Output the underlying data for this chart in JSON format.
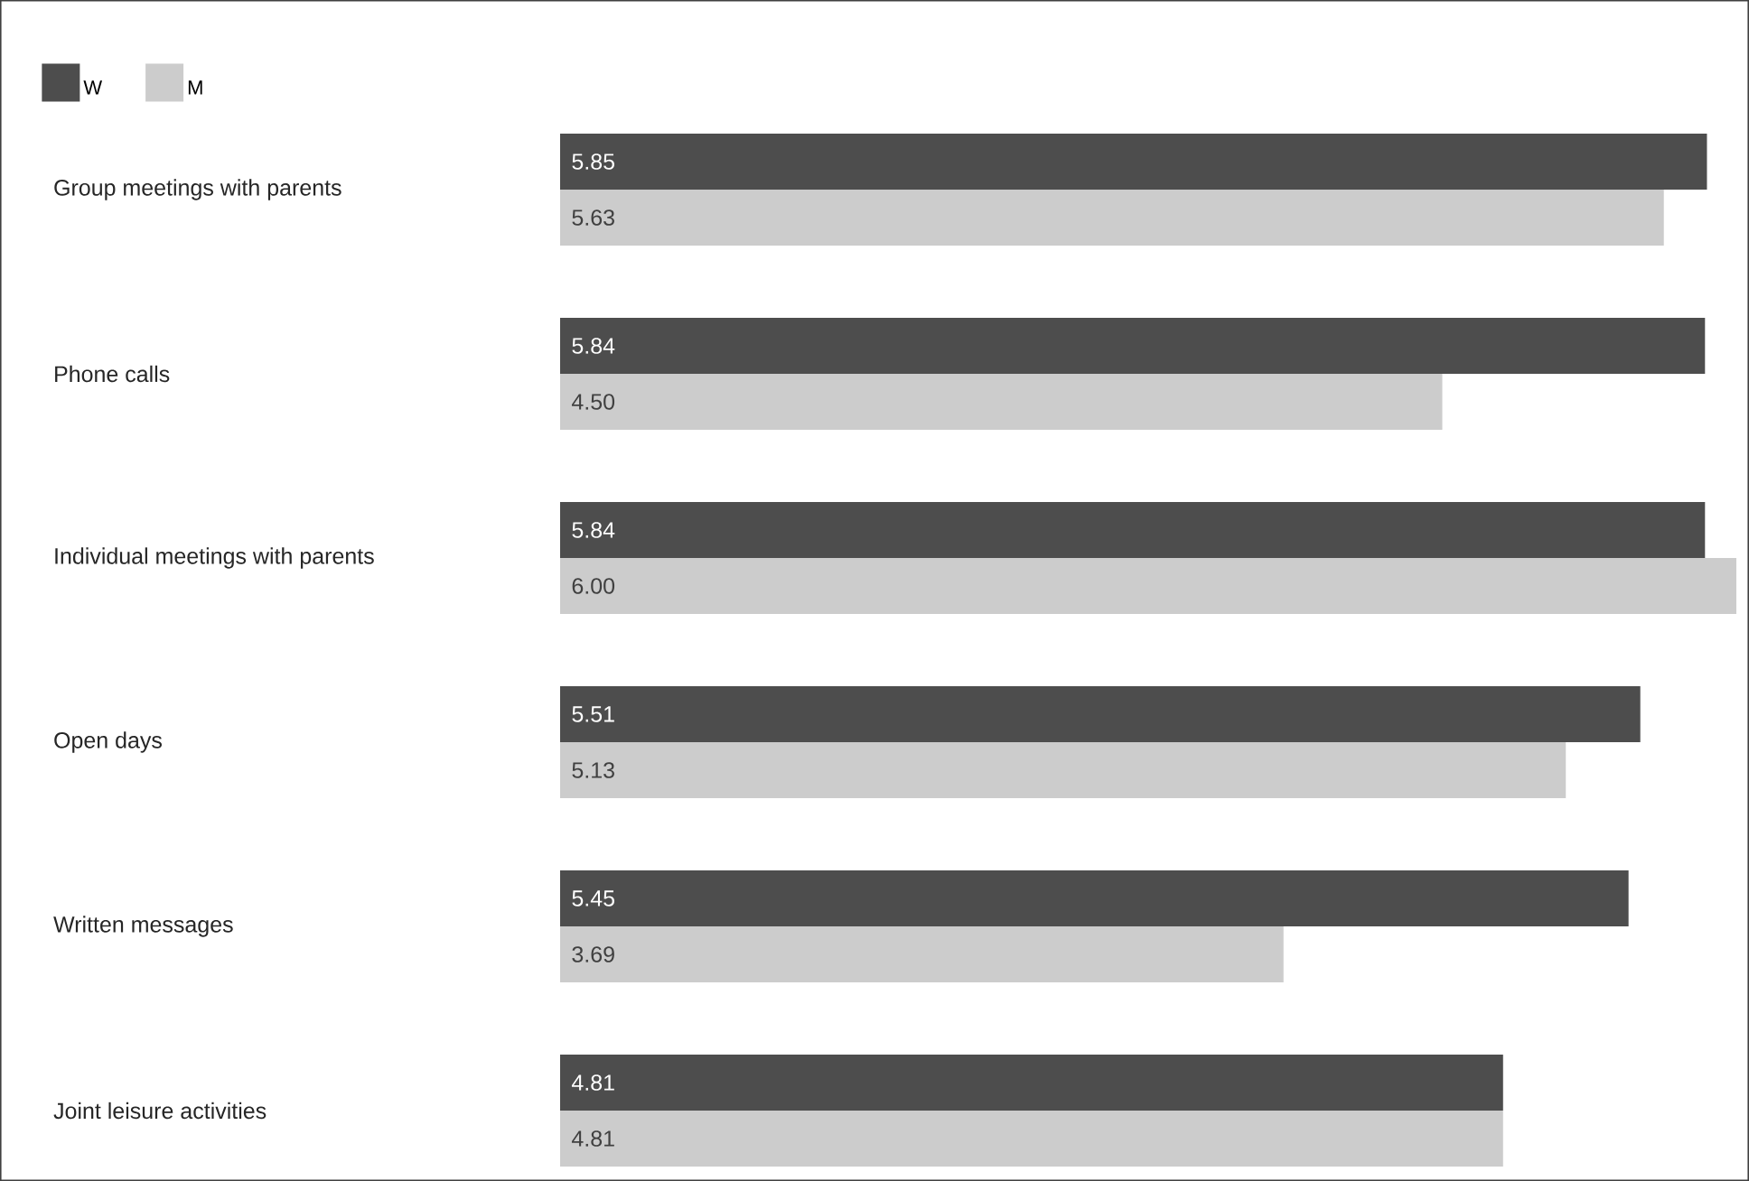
{
  "chart_data": {
    "type": "bar",
    "orientation": "horizontal",
    "categories": [
      "Group meetings with parents",
      "Phone calls",
      "Individual meetings with parents",
      "Open days",
      "Written messages",
      "Joint leisure activities"
    ],
    "series": [
      {
        "name": "W",
        "color": "#4d4d4d",
        "values": [
          5.85,
          5.84,
          5.84,
          5.51,
          5.45,
          4.81
        ],
        "value_labels": [
          "5.85",
          "5.84",
          "5.84",
          "5.51",
          "5.45",
          "4.81"
        ]
      },
      {
        "name": "M",
        "color": "#cccccc",
        "values": [
          5.63,
          4.5,
          6.0,
          5.13,
          3.69,
          4.81
        ],
        "value_labels": [
          "5.63",
          "4.50",
          "6.00",
          "5.13",
          "3.69",
          "4.81"
        ]
      }
    ],
    "xlim": [
      0,
      6
    ],
    "tick_labels": "y",
    "legend": "top left"
  }
}
